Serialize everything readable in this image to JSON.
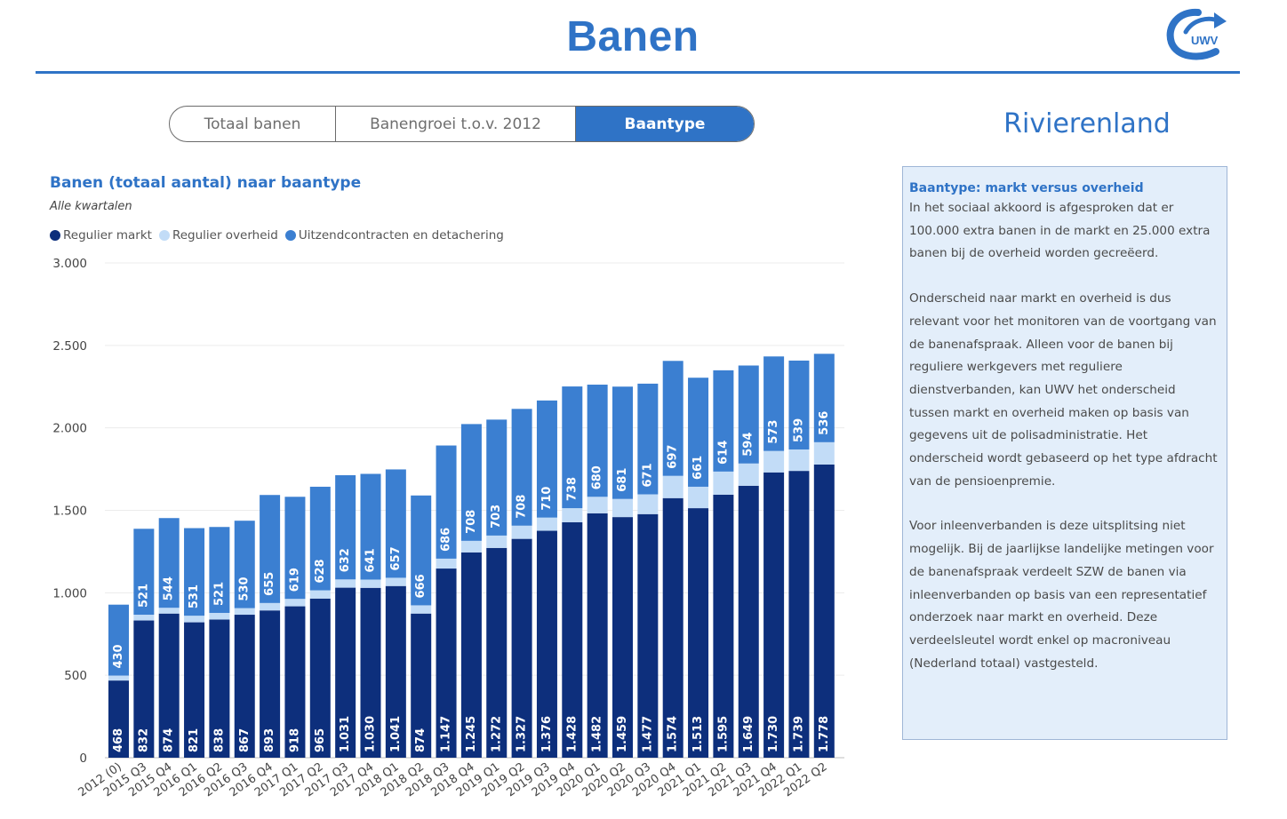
{
  "header": {
    "title": "Banen",
    "logo_text": "UWV"
  },
  "tabs": [
    {
      "label": "Totaal banen",
      "active": false
    },
    {
      "label": "Banengroei t.o.v. 2012",
      "active": false
    },
    {
      "label": "Baantype",
      "active": true
    }
  ],
  "region": "Rivierenland",
  "colors": {
    "accent": "#2f73c6",
    "regulier_markt": "#0d2f7c",
    "regulier_overheid": "#c2dcf7",
    "uitzend": "#3b7fd1"
  },
  "info": {
    "heading": "Baantype: markt versus overheid",
    "p1": "In het sociaal akkoord is afgesproken dat er 100.000 extra banen in de markt en 25.000 extra banen bij de overheid worden gecreëerd.",
    "p2": "Onderscheid naar markt en overheid is dus relevant voor het monitoren van de voortgang van de banenafspraak. Alleen voor de banen bij reguliere werkgevers met reguliere dienstverbanden, kan UWV het onderscheid tussen markt en overheid maken op basis van gegevens uit de polisadministratie. Het onderscheid wordt gebaseerd op het type afdracht van de pensioenpremie.",
    "p3": "Voor inleenverbanden is deze uitsplitsing niet mogelijk. Bij de jaarlijkse landelijke metingen voor de banenafspraak verdeelt SZW de banen via inleenverbanden op basis van een representatief onderzoek naar markt en overheid. Deze verdeelsleutel wordt enkel op macroniveau (Nederland totaal) vastgesteld."
  },
  "chart_data": {
    "type": "bar",
    "stacked": true,
    "title": "Banen (totaal aantal) naar baantype",
    "subtitle": "Alle kwartalen",
    "legend_position": "top-left",
    "grid": true,
    "ylim": [
      0,
      3000
    ],
    "yticks": [
      0,
      500,
      1000,
      1500,
      2000,
      2500,
      3000
    ],
    "ytick_labels": [
      "0",
      "500",
      "1.000",
      "1.500",
      "2.000",
      "2.500",
      "3.000"
    ],
    "categories": [
      "2012 (0)",
      "2015 Q3",
      "2015 Q4",
      "2016 Q1",
      "2016 Q2",
      "2016 Q3",
      "2016 Q4",
      "2017 Q1",
      "2017 Q2",
      "2017 Q3",
      "2017 Q4",
      "2018 Q1",
      "2018 Q2",
      "2018 Q3",
      "2018 Q4",
      "2019 Q1",
      "2019 Q2",
      "2019 Q3",
      "2019 Q4",
      "2020 Q1",
      "2020 Q2",
      "2020 Q3",
      "2020 Q4",
      "2021 Q1",
      "2021 Q2",
      "2021 Q3",
      "2021 Q4",
      "2022 Q1",
      "2022 Q2"
    ],
    "series": [
      {
        "name": "Regulier markt",
        "color": "#0d2f7c",
        "values": [
          468,
          832,
          874,
          821,
          838,
          867,
          893,
          918,
          965,
          1031,
          1030,
          1041,
          874,
          1147,
          1245,
          1272,
          1327,
          1376,
          1428,
          1482,
          1459,
          1477,
          1574,
          1513,
          1595,
          1649,
          1730,
          1739,
          1778
        ],
        "labels": [
          "468",
          "832",
          "874",
          "821",
          "838",
          "867",
          "893",
          "918",
          "965",
          "1.031",
          "1.030",
          "1.041",
          "874",
          "1.147",
          "1.245",
          "1.272",
          "1.327",
          "1.376",
          "1.428",
          "1.482",
          "1.459",
          "1.477",
          "1.574",
          "1.513",
          "1.595",
          "1.649",
          "1.730",
          "1.739",
          "1.778"
        ]
      },
      {
        "name": "Regulier overheid",
        "color": "#c2dcf7",
        "values": [
          30,
          35,
          35,
          40,
          40,
          40,
          45,
          45,
          50,
          50,
          50,
          50,
          50,
          60,
          70,
          75,
          80,
          80,
          85,
          100,
          110,
          120,
          135,
          130,
          140,
          135,
          130,
          130,
          135
        ],
        "labels": []
      },
      {
        "name": "Uitzendcontracten en detachering",
        "color": "#3b7fd1",
        "values": [
          430,
          521,
          544,
          531,
          521,
          530,
          655,
          619,
          628,
          632,
          641,
          657,
          666,
          686,
          708,
          703,
          708,
          710,
          738,
          680,
          681,
          671,
          697,
          661,
          614,
          594,
          573,
          539,
          536
        ],
        "labels": [
          "430",
          "521",
          "544",
          "531",
          "521",
          "530",
          "655",
          "619",
          "628",
          "632",
          "641",
          "657",
          "666",
          "686",
          "708",
          "703",
          "708",
          "710",
          "738",
          "680",
          "681",
          "671",
          "697",
          "661",
          "614",
          "594",
          "573",
          "539",
          "536"
        ]
      }
    ]
  }
}
